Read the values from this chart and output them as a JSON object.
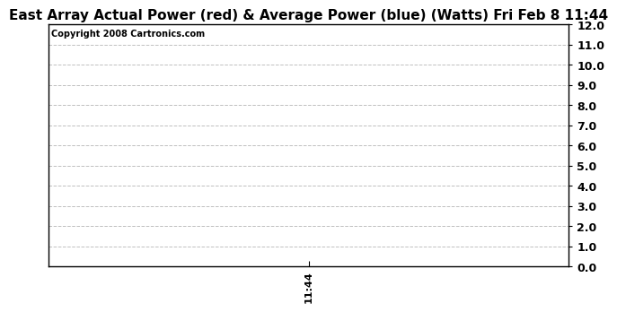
{
  "title": "East Array Actual Power (red) & Average Power (blue) (Watts) Fri Feb 8 11:44",
  "copyright_text": "Copyright 2008 Cartronics.com",
  "ylim": [
    0.0,
    12.0
  ],
  "yticks": [
    0.0,
    1.0,
    2.0,
    3.0,
    4.0,
    5.0,
    6.0,
    7.0,
    8.0,
    9.0,
    10.0,
    11.0,
    12.0
  ],
  "xlim": [
    0,
    1
  ],
  "xtick_positions": [
    0.5
  ],
  "xtick_labels": [
    "11:44"
  ],
  "background_color": "#ffffff",
  "plot_bg_color": "#ffffff",
  "grid_color": "#c0c0c0",
  "title_fontsize": 11,
  "copyright_fontsize": 7,
  "tick_fontsize": 9,
  "xtick_fontsize": 8
}
